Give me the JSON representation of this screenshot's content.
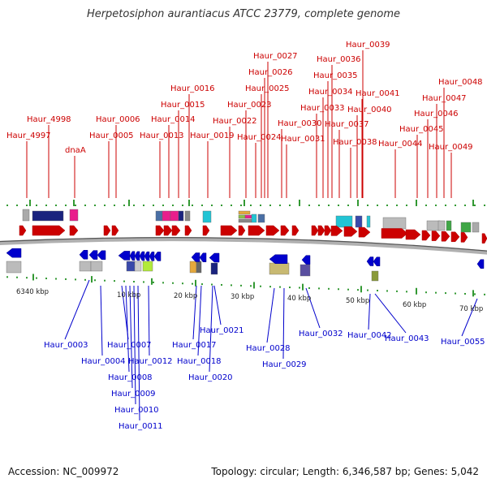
{
  "title": "Herpetosiphon aurantiacus ATCC 23779, complete genome",
  "footer": {
    "accession": "Accession: NC_009972",
    "topology": "Topology: circular; Length: 6,346,587 bp; Genes: 5,042"
  },
  "colors": {
    "forward_strand": "#cc0000",
    "reverse_strand": "#0000cc",
    "backbone": "#999999",
    "tick": "#339933"
  },
  "scale_labels": [
    "6340 kbp",
    "10 kbp",
    "20 kbp",
    "30 kbp",
    "40 kbp",
    "50 kbp",
    "60 kbp",
    "70 kbp"
  ],
  "forward_labels": [
    "Haur_4997",
    "Haur_4998",
    "dnaA",
    "Haur_0005",
    "Haur_0006",
    "Haur_0013",
    "Haur_0014",
    "Haur_0015",
    "Haur_0016",
    "Haur_0019",
    "Haur_0022",
    "Haur_0023",
    "Haur_0024",
    "Haur_0025",
    "Haur_0026",
    "Haur_0027",
    "Haur_0030",
    "Haur_0031",
    "Haur_0033",
    "Haur_0034",
    "Haur_0035",
    "Haur_0036",
    "Haur_0037",
    "Haur_0038",
    "Haur_0039",
    "Haur_0040",
    "Haur_0041",
    "Haur_0044",
    "Haur_0045",
    "Haur_0046",
    "Haur_0047",
    "Haur_0048",
    "Haur_0049"
  ],
  "reverse_labels": [
    "Haur_0003",
    "Haur_0004",
    "Haur_0007",
    "Haur_0008",
    "Haur_0009",
    "Haur_0010",
    "Haur_0011",
    "Haur_0012",
    "Haur_0017",
    "Haur_0018",
    "Haur_0020",
    "Haur_0021",
    "Haur_0028",
    "Haur_0029",
    "Haur_0032",
    "Haur_0042",
    "Haur_0043",
    "Haur_0055"
  ]
}
